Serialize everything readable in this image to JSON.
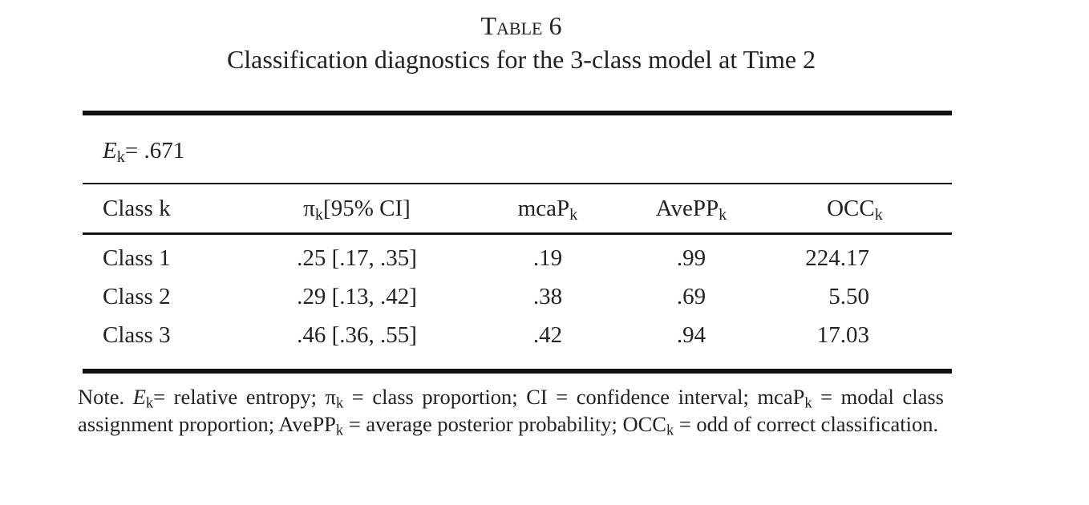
{
  "header": {
    "label": "Table 6",
    "title": "Classification diagnostics for the 3-class model at Time 2"
  },
  "table": {
    "statistic": [
      {
        "text": "E",
        "italic": true
      },
      {
        "text": "k",
        "sub": true
      },
      {
        "text": "= .671"
      }
    ],
    "columns": [
      [
        {
          "text": "Class k"
        }
      ],
      [
        {
          "text": "π"
        },
        {
          "text": "k",
          "sub": true
        },
        {
          "text": "[95% CI]"
        }
      ],
      [
        {
          "text": "mcaP"
        },
        {
          "text": "k",
          "sub": true
        }
      ],
      [
        {
          "text": "AvePP"
        },
        {
          "text": "k",
          "sub": true
        }
      ],
      [
        {
          "text": "OCC"
        },
        {
          "text": "k",
          "sub": true
        }
      ]
    ],
    "rows": [
      [
        "Class 1",
        ".25 [.17, .35]",
        ".19",
        ".99",
        "224.17"
      ],
      [
        "Class 2",
        ".29 [.13, .42]",
        ".38",
        ".69",
        "5.50"
      ],
      [
        "Class 3",
        ".46 [.36, .55]",
        ".42",
        ".94",
        "17.03"
      ]
    ]
  },
  "note": [
    {
      "text": "Note. "
    },
    {
      "text": "E",
      "italic": true
    },
    {
      "text": "k",
      "sub": true
    },
    {
      "text": "= relative entropy; π"
    },
    {
      "text": "k",
      "sub": true
    },
    {
      "text": " = class proportion; CI =  confidence interval; mcaP"
    },
    {
      "text": "k",
      "sub": true
    },
    {
      "text": " = modal class assignment proportion; AvePP"
    },
    {
      "text": "k",
      "sub": true
    },
    {
      "text": " = average posterior probability; OCC"
    },
    {
      "text": "k",
      "sub": true
    },
    {
      "text": " = odd of correct classification."
    }
  ]
}
